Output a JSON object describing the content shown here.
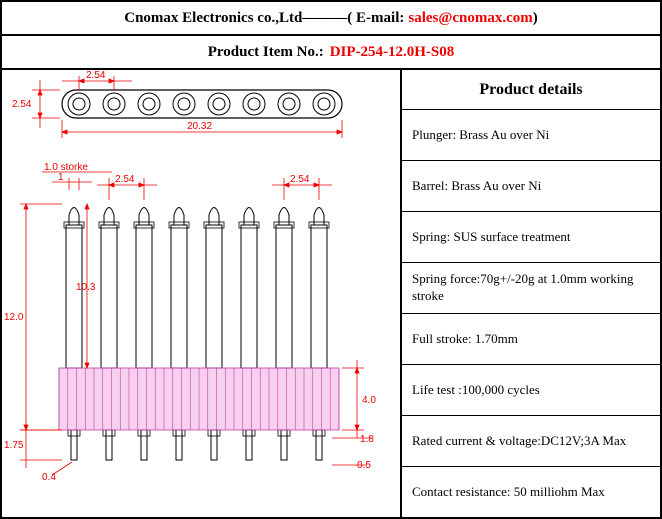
{
  "header": {
    "company": "Cnomax Electronics co.,Ltd———( E-mail:",
    "email": "sales@cnomax.com",
    "suffix": ")"
  },
  "item": {
    "label": "Product Item No.:",
    "partno": "DIP-254-12.0H-S08"
  },
  "details": {
    "title": "Product details",
    "rows": [
      "Plunger: Brass Au over Ni",
      "Barrel: Brass Au over Ni",
      "Spring: SUS surface treatment",
      "Spring force:70g+/-20g at 1.0mm working stroke",
      "Full stroke: 1.70mm",
      "Life test :100,000 cycles",
      "Rated current & voltage:DC12V;3A Max",
      "Contact resistance: 50 milliohm Max"
    ]
  },
  "drawing": {
    "pin_count": 8,
    "dim_color": "#e00000",
    "body_color": "#000000",
    "housing_fill": "#f0a0e0",
    "top_view": {
      "pitch": "2.54",
      "height": "2.54",
      "length": "20.32"
    },
    "side_view": {
      "stroke_label": "1.0 storke",
      "pin_width": "1",
      "pitch": "2.54",
      "pitch2": "2.54",
      "total_h": "12.0",
      "barrel_h": "10.3",
      "housing_h": "4.0",
      "tail_h": "1.75",
      "tail_offset": "0.4",
      "tail_w": "0.5",
      "plunger_w": "1.8"
    }
  }
}
